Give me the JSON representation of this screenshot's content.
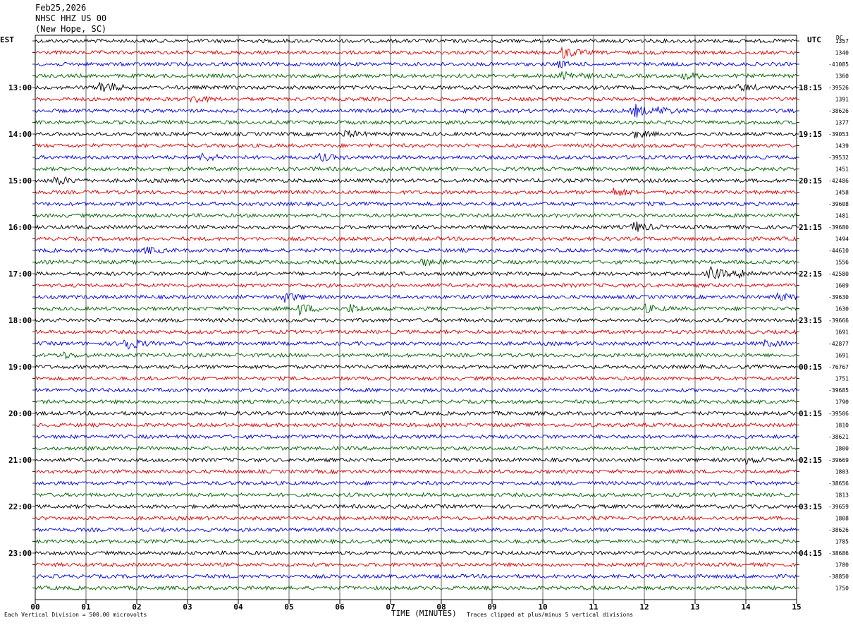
{
  "header": {
    "date": "Feb25,2026",
    "station": "NHSC HHZ US 00",
    "location": "(New Hope, SC)"
  },
  "left_timezone": "EST",
  "right_timezone": "UTC",
  "dc_header": "DC",
  "footer": {
    "scale_note": "Each Vertical Division =  500.00 microvolts",
    "clip_note": "Traces clipped at plus/minus 5 vertical divisions"
  },
  "colors": {
    "trace": [
      "#000000",
      "#e00000",
      "#0000e0",
      "#006400"
    ],
    "grid": "#000000"
  },
  "chart_data": {
    "type": "seismogram",
    "xlabel": "TIME (MINUTES)",
    "xlim": [
      0,
      15
    ],
    "x_ticks": [
      "00",
      "01",
      "02",
      "03",
      "04",
      "05",
      "06",
      "07",
      "08",
      "09",
      "10",
      "11",
      "12",
      "13",
      "14",
      "15"
    ],
    "rows_per_hour": 4,
    "row_count": 48,
    "left_hour_labels": [
      "13:00",
      "14:00",
      "15:00",
      "16:00",
      "17:00",
      "18:00",
      "19:00",
      "20:00",
      "21:00",
      "22:00",
      "23:00"
    ],
    "right_hour_labels": [
      "18:15",
      "19:15",
      "20:15",
      "21:15",
      "22:15",
      "23:15",
      "00:15",
      "01:15",
      "02:15",
      "03:15",
      "04:15"
    ],
    "dc_offsets": [
      "1357",
      "1340",
      "-41085",
      "1360",
      "-39526",
      "1391",
      "-38626",
      "1377",
      "-39053",
      "1439",
      "-39532",
      "1451",
      "-42486",
      "1458",
      "-39608",
      "1481",
      "-39680",
      "1494",
      "-44610",
      "1556",
      "-42580",
      "1609",
      "-39630",
      "1630",
      "-39666",
      "1691",
      "-42877",
      "1691",
      "-76767",
      "1751",
      "-39685",
      "1790",
      "-39506",
      "1810",
      "-38621",
      "1800",
      "-39669",
      "1803",
      "-38656",
      "1813",
      "-39659",
      "1808",
      "-38626",
      "1785",
      "-38686",
      "1780",
      "-38850",
      "1750"
    ],
    "events": [
      {
        "row": 1,
        "minute": 10.4,
        "strength": 3.0
      },
      {
        "row": 2,
        "minute": 10.3,
        "strength": 1.5
      },
      {
        "row": 3,
        "minute": 10.4,
        "strength": 3.2
      },
      {
        "row": 3,
        "minute": 12.8,
        "strength": 2.0
      },
      {
        "row": 4,
        "minute": 1.3,
        "strength": 4.0
      },
      {
        "row": 4,
        "minute": 13.9,
        "strength": 2.0
      },
      {
        "row": 5,
        "minute": 3.1,
        "strength": 2.0
      },
      {
        "row": 6,
        "minute": 11.8,
        "strength": 3.5
      },
      {
        "row": 6,
        "minute": 12.3,
        "strength": 2.0
      },
      {
        "row": 8,
        "minute": 6.1,
        "strength": 1.8
      },
      {
        "row": 8,
        "minute": 11.8,
        "strength": 1.8
      },
      {
        "row": 10,
        "minute": 3.3,
        "strength": 2.0
      },
      {
        "row": 10,
        "minute": 5.6,
        "strength": 1.8
      },
      {
        "row": 12,
        "minute": 0.4,
        "strength": 2.5
      },
      {
        "row": 13,
        "minute": 11.4,
        "strength": 2.0
      },
      {
        "row": 16,
        "minute": 11.8,
        "strength": 3.0
      },
      {
        "row": 18,
        "minute": 2.2,
        "strength": 1.6
      },
      {
        "row": 19,
        "minute": 7.6,
        "strength": 1.6
      },
      {
        "row": 20,
        "minute": 13.3,
        "strength": 3.5
      },
      {
        "row": 20,
        "minute": 13.9,
        "strength": 2.0
      },
      {
        "row": 22,
        "minute": 4.9,
        "strength": 2.5
      },
      {
        "row": 22,
        "minute": 14.6,
        "strength": 2.0
      },
      {
        "row": 23,
        "minute": 5.2,
        "strength": 3.0
      },
      {
        "row": 23,
        "minute": 6.2,
        "strength": 2.0
      },
      {
        "row": 23,
        "minute": 12.0,
        "strength": 2.0
      },
      {
        "row": 26,
        "minute": 1.75,
        "strength": 4.5
      },
      {
        "row": 26,
        "minute": 14.4,
        "strength": 1.6
      },
      {
        "row": 27,
        "minute": 0.5,
        "strength": 1.8
      },
      {
        "row": 36,
        "minute": 14.0,
        "strength": 1.6
      }
    ]
  }
}
